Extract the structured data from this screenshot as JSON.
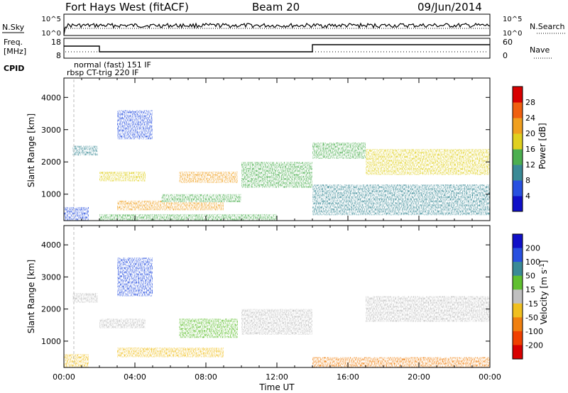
{
  "header": {
    "station": "Fort Hays West (fitACF)",
    "beam": "Beam 20",
    "date": "09/Jun/2014"
  },
  "noise_panel": {
    "left_label": "N.Sky",
    "right_label": "N.Search",
    "left_ticks": [
      "10^5",
      "10^0"
    ],
    "right_ticks": [
      "10^5",
      "10^0"
    ]
  },
  "freq_panel": {
    "left_label_1": "Freq.",
    "left_label_2": "[MHz]",
    "right_label": "Nave",
    "left_ticks": [
      "18",
      "8"
    ],
    "right_ticks": [
      "60",
      "0"
    ],
    "cpid_label": "CPID",
    "cpid_1": "normal (fast) 151 IF",
    "cpid_2": "rbsp CT-trig 220 IF"
  },
  "chart_data": [
    {
      "type": "heatmap",
      "title": "",
      "parameter": "Power",
      "ylabel": "Slant Range [km]",
      "ylim": [
        180,
        4600
      ],
      "yticks": [
        "1000",
        "2000",
        "3000",
        "4000"
      ],
      "xlim": [
        0,
        24
      ],
      "colorbar": {
        "label": "Power [dB]",
        "ticks": [
          "4",
          "8",
          "12",
          "16",
          "20",
          "24",
          "28"
        ],
        "colors": [
          "#1010c8",
          "#2850e0",
          "#3a8a96",
          "#4caf50",
          "#e0d020",
          "#f0a020",
          "#f06010",
          "#d80000"
        ]
      },
      "echo_regions": [
        {
          "t": [
            0.0,
            1.4
          ],
          "range": [
            180,
            600
          ],
          "level": 1
        },
        {
          "t": [
            0.5,
            1.9
          ],
          "range": [
            2200,
            2500
          ],
          "level": 2
        },
        {
          "t": [
            2.0,
            4.6
          ],
          "range": [
            1400,
            1700
          ],
          "level": 4
        },
        {
          "t": [
            3.0,
            5.0
          ],
          "range": [
            2700,
            3600
          ],
          "level": 1
        },
        {
          "t": [
            2.0,
            12.0
          ],
          "range": [
            180,
            380
          ],
          "level": 3
        },
        {
          "t": [
            3.0,
            9.0
          ],
          "range": [
            500,
            800
          ],
          "level": 5
        },
        {
          "t": [
            5.5,
            10.0
          ],
          "range": [
            750,
            1000
          ],
          "level": 3
        },
        {
          "t": [
            6.5,
            9.8
          ],
          "range": [
            1350,
            1700
          ],
          "level": 5
        },
        {
          "t": [
            10.0,
            14.0
          ],
          "range": [
            1200,
            2000
          ],
          "level": 3
        },
        {
          "t": [
            14.0,
            24.0
          ],
          "range": [
            350,
            1300
          ],
          "level": 2
        },
        {
          "t": [
            14.0,
            17.0
          ],
          "range": [
            2100,
            2600
          ],
          "level": 3
        },
        {
          "t": [
            17.0,
            24.0
          ],
          "range": [
            1600,
            2400
          ],
          "level": 4
        }
      ]
    },
    {
      "type": "heatmap",
      "title": "",
      "parameter": "Velocity",
      "ylabel": "Slant Range [km]",
      "xlabel": "Time UT",
      "ylim": [
        180,
        4600
      ],
      "yticks": [
        "1000",
        "2000",
        "3000",
        "4000"
      ],
      "xticks": [
        "00:00",
        "04:00",
        "08:00",
        "12:00",
        "16:00",
        "20:00",
        "00:00"
      ],
      "xlim": [
        0,
        24
      ],
      "colorbar": {
        "label": "Velocity [m s^-1]",
        "ticks": [
          "200",
          "100",
          "50",
          "15",
          "-15",
          "-50",
          "-100",
          "-200"
        ],
        "colors": [
          "#1010c8",
          "#2850e0",
          "#3a8a96",
          "#60c030",
          "#c0c0c0",
          "#f0c020",
          "#f08010",
          "#f04000",
          "#d80000"
        ]
      },
      "echo_regions": [
        {
          "t": [
            0.0,
            1.4
          ],
          "range": [
            180,
            600
          ],
          "velocity": -15
        },
        {
          "t": [
            0.5,
            1.9
          ],
          "range": [
            2200,
            2500
          ],
          "velocity": 0
        },
        {
          "t": [
            2.0,
            4.6
          ],
          "range": [
            1400,
            1700
          ],
          "velocity": 0
        },
        {
          "t": [
            3.0,
            5.0
          ],
          "range": [
            2400,
            3600
          ],
          "velocity": 100
        },
        {
          "t": [
            3.0,
            9.0
          ],
          "range": [
            500,
            800
          ],
          "velocity": -40
        },
        {
          "t": [
            6.5,
            9.8
          ],
          "range": [
            1100,
            1700
          ],
          "velocity": 30
        },
        {
          "t": [
            10.0,
            14.0
          ],
          "range": [
            1200,
            2000
          ],
          "velocity": 0
        },
        {
          "t": [
            14.0,
            24.0
          ],
          "range": [
            180,
            500
          ],
          "velocity": -60
        },
        {
          "t": [
            17.0,
            24.0
          ],
          "range": [
            1600,
            2400
          ],
          "velocity": 0
        }
      ]
    }
  ]
}
